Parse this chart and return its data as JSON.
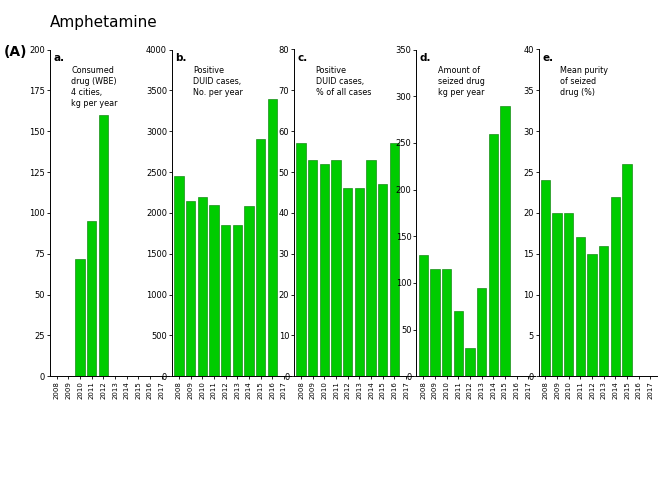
{
  "title": "Amphetamine",
  "panel_label": "(A)",
  "years": [
    "2008",
    "2009",
    "2010",
    "2011",
    "2012",
    "2013",
    "2014",
    "2015",
    "2016",
    "2017"
  ],
  "panels": [
    {
      "label": "a.",
      "ylabel": "Consumed\ndrug (WBE)\n4 cities,\nkg per year",
      "ylim": [
        0,
        200
      ],
      "yticks": [
        0,
        25,
        50,
        75,
        100,
        125,
        150,
        175,
        200
      ],
      "values": [
        0,
        0,
        72,
        95,
        160,
        0,
        0,
        0,
        0,
        0
      ]
    },
    {
      "label": "b.",
      "ylabel": "Positive\nDUID cases,\nNo. per year",
      "ylim": [
        0,
        4000
      ],
      "yticks": [
        0,
        500,
        1000,
        1500,
        2000,
        2500,
        3000,
        3500,
        4000
      ],
      "values": [
        2450,
        2150,
        2200,
        2100,
        1850,
        1850,
        2080,
        2900,
        3400,
        0
      ]
    },
    {
      "label": "c.",
      "ylabel": "Positive\nDUID cases,\n% of all cases",
      "ylim": [
        0,
        80
      ],
      "yticks": [
        0,
        10,
        20,
        30,
        40,
        50,
        60,
        70,
        80
      ],
      "values": [
        57,
        53,
        52,
        53,
        46,
        46,
        53,
        47,
        57,
        0
      ]
    },
    {
      "label": "d.",
      "ylabel": "Amount of\nseized drug\nkg per year",
      "ylim": [
        0,
        350
      ],
      "yticks": [
        0,
        50,
        100,
        150,
        200,
        250,
        300,
        350
      ],
      "values": [
        130,
        115,
        115,
        70,
        30,
        95,
        260,
        290,
        0,
        0
      ]
    },
    {
      "label": "e.",
      "ylabel": "Mean purity\nof seized\ndrug (%)",
      "ylim": [
        0,
        40
      ],
      "yticks": [
        0,
        5,
        10,
        15,
        20,
        25,
        30,
        35,
        40
      ],
      "values": [
        24,
        20,
        20,
        17,
        15,
        16,
        22,
        26,
        0,
        0
      ]
    }
  ],
  "bar_color": "#00cc00",
  "bar_edge_color": "#007700",
  "background_color": "#ffffff",
  "fig_width": 6.64,
  "fig_height": 4.95,
  "dpi": 100
}
